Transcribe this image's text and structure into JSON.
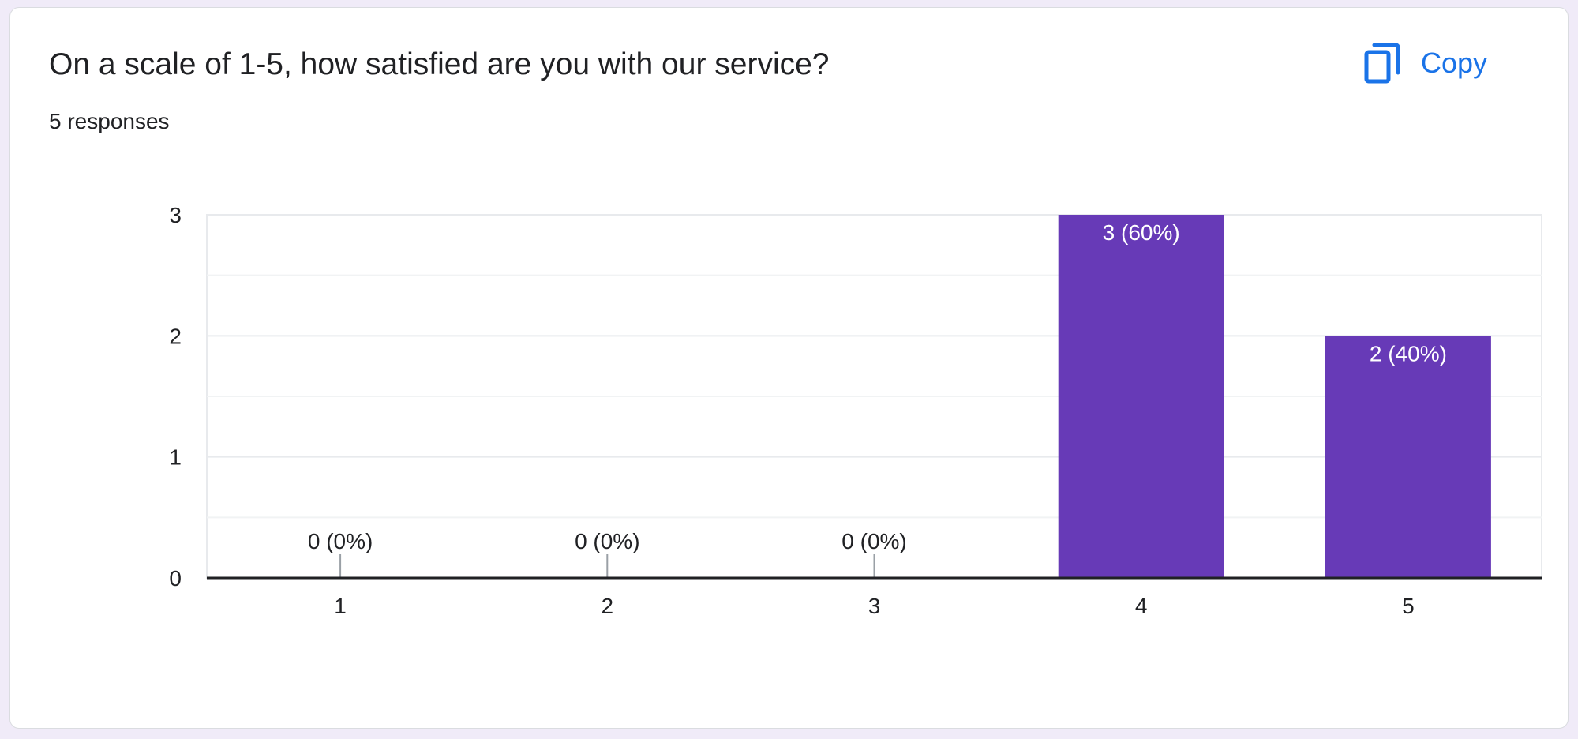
{
  "question": {
    "title": "On a scale of 1-5, how satisfied are you with our service?",
    "responses": "5 responses"
  },
  "toolbar": {
    "copy_label": "Copy",
    "copy_icon": "copy-icon"
  },
  "colors": {
    "bar": "#673ab7",
    "accent": "#1a73e8",
    "background": "#f0ebf8"
  },
  "chart_data": {
    "type": "bar",
    "categories": [
      "1",
      "2",
      "3",
      "4",
      "5"
    ],
    "values": [
      0,
      0,
      0,
      3,
      2
    ],
    "data_labels": [
      "0 (0%)",
      "0 (0%)",
      "0 (0%)",
      "3 (60%)",
      "2 (40%)"
    ],
    "y_ticks": [
      "0",
      "1",
      "2",
      "3"
    ],
    "ylim": [
      0,
      3
    ],
    "grid": true,
    "legend": "none"
  }
}
